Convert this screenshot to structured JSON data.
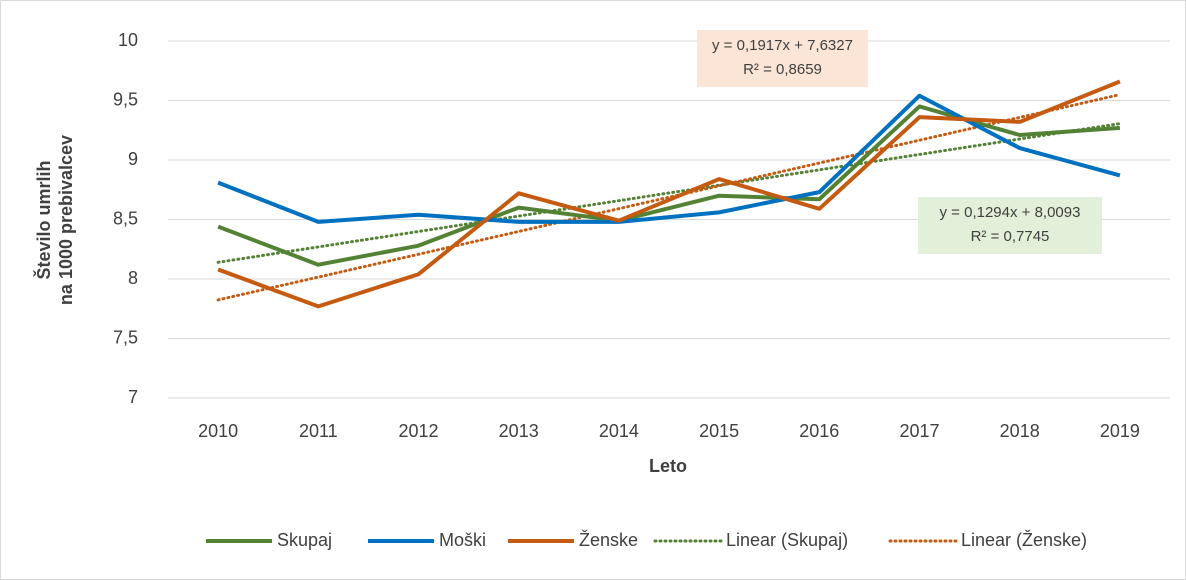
{
  "chart_data": {
    "type": "line",
    "categories": [
      "2010",
      "2011",
      "2012",
      "2013",
      "2014",
      "2015",
      "2016",
      "2017",
      "2018",
      "2019"
    ],
    "series": [
      {
        "name": "Skupaj",
        "color": "#548235",
        "values": [
          8.44,
          8.12,
          8.28,
          8.6,
          8.49,
          8.7,
          8.67,
          9.45,
          9.21,
          9.27
        ]
      },
      {
        "name": "Moški",
        "color": "#0070c0",
        "values": [
          8.81,
          8.48,
          8.54,
          8.48,
          8.48,
          8.56,
          8.73,
          9.54,
          9.1,
          8.87
        ]
      },
      {
        "name": "Ženske",
        "color": "#c55a11",
        "values": [
          8.08,
          7.77,
          8.04,
          8.72,
          8.49,
          8.84,
          8.59,
          9.36,
          9.32,
          9.66
        ]
      }
    ],
    "trendlines": [
      {
        "name": "Linear (Skupaj)",
        "series": 0,
        "color": "#548235",
        "equation": "y = 0,1294x + 8,0093",
        "r2": "R² = 0,7745",
        "box_color": "#e2efd9"
      },
      {
        "name": "Linear (Ženske)",
        "series": 2,
        "color": "#c55a11",
        "equation": "y = 0,1917x + 7,6327",
        "r2": "R² = 0,8659",
        "box_color": "#fbe5d6"
      }
    ],
    "x_label": "Leto",
    "y_label": [
      "Število umrlih",
      "na 1000 prebivalcev"
    ],
    "ylim": [
      7,
      10
    ],
    "yticks": [
      7,
      {
        "value": 7.5,
        "label": "7,5"
      },
      8,
      {
        "value": 8.5,
        "label": "8,5"
      },
      9,
      {
        "value": 9.5,
        "label": "9,5"
      },
      10
    ],
    "grid": true,
    "legend": "bottom"
  }
}
